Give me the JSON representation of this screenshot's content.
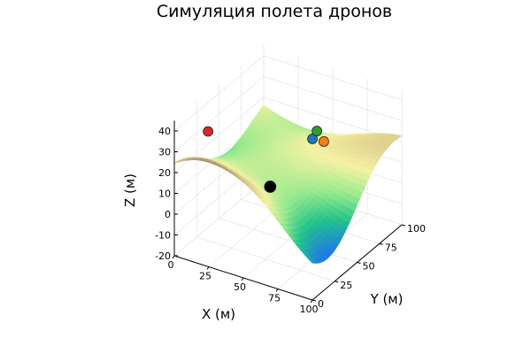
{
  "chart_data": {
    "type": "surface",
    "title": "Симуляция полета дронов",
    "xlabel": "X (м)",
    "ylabel": "Y (м)",
    "zlabel": "Z (м)",
    "xlim": [
      0,
      100
    ],
    "ylim": [
      0,
      100
    ],
    "zlim": [
      -20,
      45
    ],
    "x_ticks": [
      "0",
      "25",
      "50",
      "75",
      "100"
    ],
    "y_ticks": [
      "0",
      "25",
      "50",
      "75",
      "100"
    ],
    "z_ticks": [
      "-20",
      "-10",
      "0",
      "10",
      "20",
      "30",
      "40"
    ],
    "grid": true,
    "colormap": [
      "#1e7fe0",
      "#22c48a",
      "#9bea8e",
      "#f4f2a2",
      "#d8c58a",
      "#8c7864",
      "#f2efec"
    ],
    "drones": [
      {
        "color": "#d62728",
        "x": 5,
        "y": 30,
        "z": 30
      },
      {
        "color": "#000000",
        "x": 50,
        "y": 30,
        "z": 13
      },
      {
        "color": "#1f77b4",
        "x": 45,
        "y": 85,
        "z": 15
      },
      {
        "color": "#2ca02c",
        "x": 45,
        "y": 90,
        "z": 17
      },
      {
        "color": "#ff7f0e",
        "x": 50,
        "y": 90,
        "z": 13
      }
    ]
  }
}
